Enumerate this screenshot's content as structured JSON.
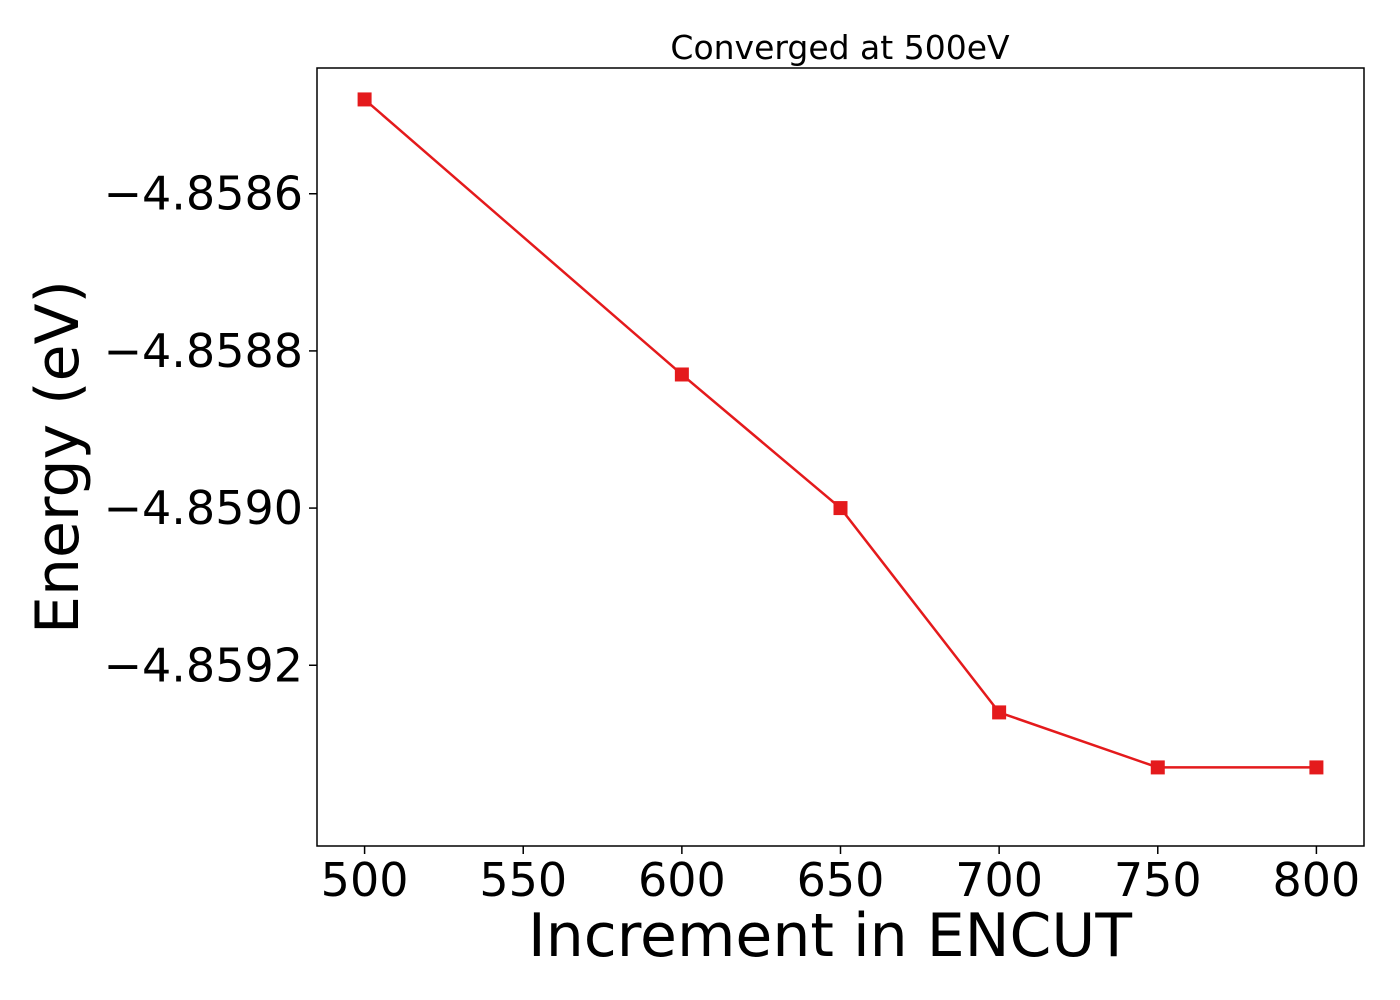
{
  "chart_data": {
    "type": "line",
    "title": "Converged at 500eV",
    "xlabel": "Increment in ENCUT",
    "ylabel": "Energy (eV)",
    "x": [
      500,
      600,
      650,
      700,
      750,
      800
    ],
    "series": [
      {
        "values": [
          -4.85848,
          -4.85883,
          -4.859,
          -4.85926,
          -4.85933,
          -4.85933
        ],
        "color": "#e41a1c",
        "marker": "square"
      }
    ],
    "xlim": [
      485,
      815
    ],
    "ylim": [
      -4.85943,
      -4.85844
    ],
    "xticks": [
      500,
      550,
      600,
      650,
      700,
      750,
      800
    ],
    "xtick_labels": [
      "500",
      "550",
      "600",
      "650",
      "700",
      "750",
      "800"
    ],
    "yticks": [
      -4.8586,
      -4.8588,
      -4.859,
      -4.8592
    ],
    "ytick_labels": [
      "−4.8586",
      "−4.8588",
      "−4.8590",
      "−4.8592"
    ],
    "grid": false,
    "legend": "none"
  }
}
